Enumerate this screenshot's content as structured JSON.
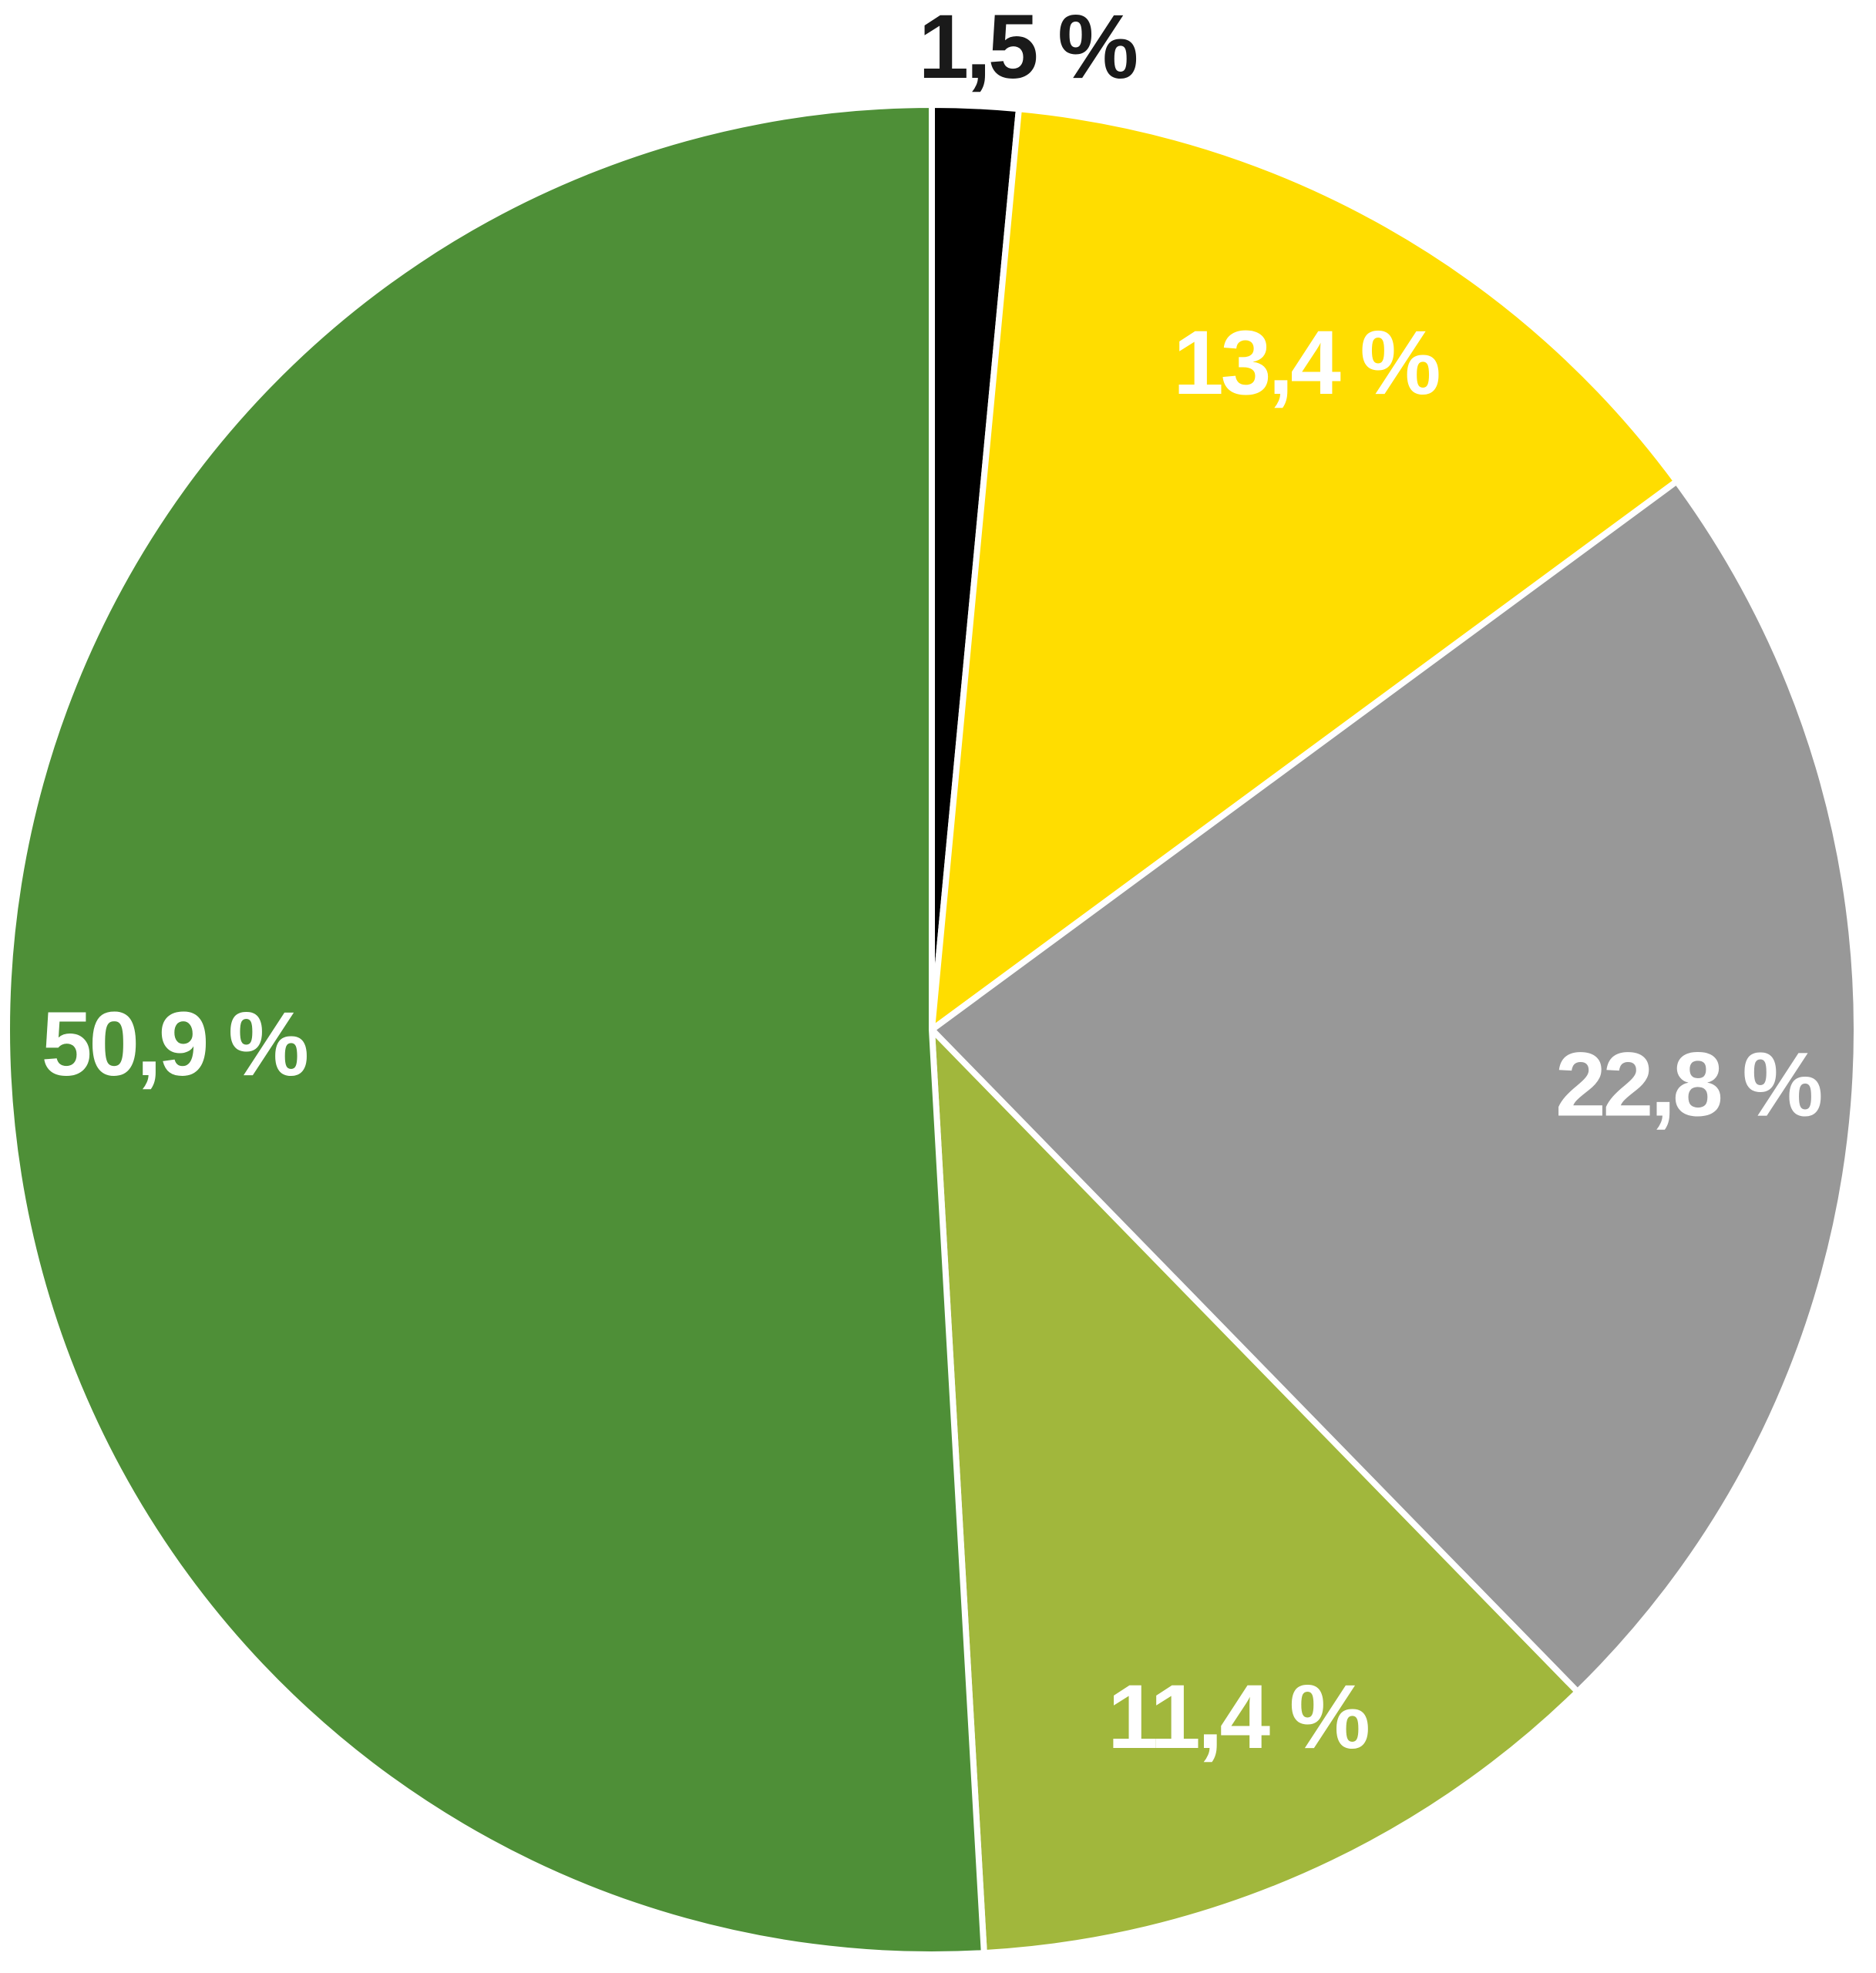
{
  "chart_data": {
    "type": "pie",
    "values": [
      1.5,
      13.4,
      22.8,
      11.4,
      50.9
    ],
    "value_labels": [
      "1,5 %",
      "13,4 %",
      "22,8 %",
      "11,4 %",
      "50,9 %"
    ],
    "colors": [
      "#000000",
      "#ffdd00",
      "#989898",
      "#a1b73c",
      "#4e8f37"
    ]
  }
}
